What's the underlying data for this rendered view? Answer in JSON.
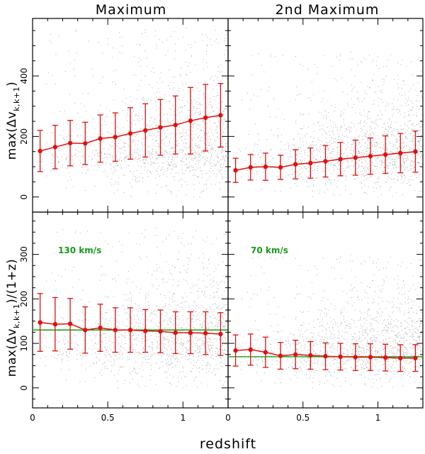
{
  "chart_data": [
    {
      "type": "scatter",
      "panel": "top-left",
      "title": "Maximum",
      "ylabel_main": "max(Δv",
      "ylabel_sub": "k,k+1",
      "ylabel_end": ")",
      "xlabel": "",
      "xlim": [
        0,
        1.3
      ],
      "ylim": [
        -50,
        590
      ],
      "yticks": [
        0,
        200,
        400
      ],
      "ytick_labels": [
        "0",
        "200",
        "400"
      ],
      "xticks": [
        0,
        0.5,
        1
      ],
      "x": [
        0.05,
        0.15,
        0.25,
        0.35,
        0.45,
        0.55,
        0.65,
        0.75,
        0.85,
        0.95,
        1.05,
        1.15,
        1.25
      ],
      "y": [
        152,
        165,
        178,
        177,
        193,
        198,
        210,
        220,
        230,
        238,
        252,
        262,
        270
      ],
      "yerr": [
        68,
        72,
        75,
        70,
        78,
        80,
        85,
        88,
        92,
        96,
        110,
        110,
        105
      ],
      "background_scatter": {
        "density": "increasing-with-redshift",
        "spread": [
          0,
          560
        ]
      }
    },
    {
      "type": "scatter",
      "panel": "top-right",
      "title": "2nd Maximum",
      "xlim": [
        0,
        1.3
      ],
      "ylim": [
        -50,
        590
      ],
      "yticks": [
        0,
        200,
        400
      ],
      "xticks": [
        0,
        0.5,
        1
      ],
      "x": [
        0.05,
        0.15,
        0.25,
        0.35,
        0.45,
        0.55,
        0.65,
        0.75,
        0.85,
        0.95,
        1.05,
        1.15,
        1.25
      ],
      "y": [
        88,
        98,
        100,
        98,
        108,
        112,
        118,
        125,
        130,
        135,
        140,
        145,
        150
      ],
      "yerr": [
        40,
        42,
        45,
        40,
        48,
        50,
        52,
        55,
        58,
        60,
        62,
        65,
        68
      ],
      "background_scatter": {
        "density": "increasing-with-redshift",
        "spread": [
          0,
          480
        ]
      }
    },
    {
      "type": "scatter",
      "panel": "bottom-left",
      "ylabel_main": "max(Δv",
      "ylabel_sub": "k,k+1",
      "ylabel_end": ")/(1+z)",
      "xlabel": "",
      "xlim": [
        0,
        1.3
      ],
      "ylim": [
        -45,
        395
      ],
      "yticks": [
        0,
        100,
        200,
        300
      ],
      "ytick_labels": [
        "0",
        "100",
        "200",
        "300"
      ],
      "xticks": [
        0,
        0.5,
        1
      ],
      "xtick_labels": [
        "0",
        "0.5",
        "1"
      ],
      "x": [
        0.05,
        0.15,
        0.25,
        0.35,
        0.45,
        0.55,
        0.65,
        0.75,
        0.85,
        0.95,
        1.05,
        1.15,
        1.25
      ],
      "y": [
        147,
        143,
        144,
        130,
        135,
        130,
        130,
        128,
        127,
        124,
        124,
        123,
        121
      ],
      "yerr": [
        65,
        60,
        57,
        52,
        53,
        50,
        50,
        48,
        48,
        47,
        47,
        48,
        48
      ],
      "reference_line": {
        "value": 130,
        "label": "130 km/s"
      },
      "background_scatter": {
        "density": "increasing-with-redshift",
        "spread": [
          0,
          360
        ]
      }
    },
    {
      "type": "scatter",
      "panel": "bottom-right",
      "xlim": [
        0,
        1.3
      ],
      "ylim": [
        -45,
        395
      ],
      "yticks": [
        0,
        100,
        200,
        300
      ],
      "xticks": [
        0,
        0.5,
        1
      ],
      "xtick_labels": [
        "0",
        "0.5",
        "1"
      ],
      "x": [
        0.05,
        0.15,
        0.25,
        0.35,
        0.45,
        0.55,
        0.65,
        0.75,
        0.85,
        0.95,
        1.05,
        1.15,
        1.25
      ],
      "y": [
        84,
        86,
        80,
        72,
        75,
        73,
        71,
        70,
        69,
        69,
        68,
        67,
        67
      ],
      "yerr": [
        35,
        35,
        34,
        30,
        32,
        31,
        30,
        30,
        30,
        30,
        30,
        30,
        30
      ],
      "reference_line": {
        "value": 70,
        "label": "70 km/s"
      },
      "background_scatter": {
        "density": "increasing-with-redshift",
        "spread": [
          0,
          300
        ]
      }
    }
  ],
  "shared_xlabel": "redshift",
  "colors": {
    "series": "#e01010",
    "reference": "#22aa22",
    "scatter": "#9a9a9a"
  }
}
